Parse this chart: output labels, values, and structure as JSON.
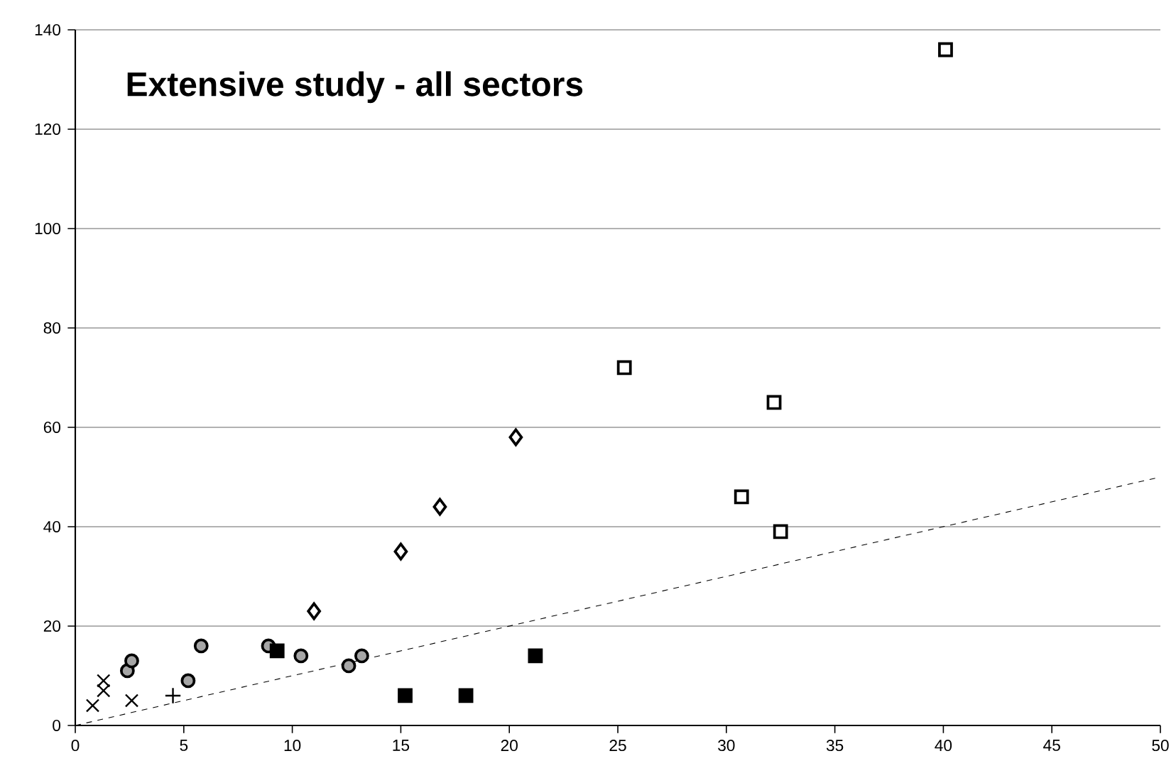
{
  "chart_data": {
    "type": "scatter",
    "title": "Extensive study - all sectors",
    "xlim": [
      0,
      50
    ],
    "ylim": [
      0,
      140
    ],
    "xticks": [
      0,
      5,
      10,
      15,
      20,
      25,
      30,
      35,
      40,
      45,
      50
    ],
    "yticks": [
      0,
      20,
      40,
      60,
      80,
      100,
      120,
      140
    ],
    "grid": "y",
    "series": [
      {
        "color": "#000000",
        "marker": "cross",
        "x": [
          0.8,
          1.3,
          1.3,
          2.6
        ],
        "values": [
          4,
          7,
          9,
          5
        ]
      },
      {
        "color": "#000000",
        "marker": "plus",
        "x": [
          4.5
        ],
        "values": [
          6
        ]
      },
      {
        "color": "#a6a6a6",
        "marker": "circle",
        "x": [
          2.4,
          2.6,
          5.2,
          5.8,
          8.9,
          10.4,
          12.6,
          13.2
        ],
        "values": [
          11,
          13,
          9,
          16,
          16,
          14,
          12,
          14
        ]
      },
      {
        "color": "#000000",
        "marker": "square",
        "x": [
          9.3,
          15.2,
          18.0,
          21.2
        ],
        "values": [
          15,
          6,
          6,
          14
        ]
      },
      {
        "color": "#ffffff",
        "marker": "diamond",
        "x": [
          11.0,
          15.0,
          16.8,
          20.3
        ],
        "values": [
          23,
          35,
          44,
          58
        ]
      },
      {
        "color": "#ffffff",
        "marker": "square",
        "x": [
          25.3,
          30.7,
          32.2,
          32.5,
          40.1
        ],
        "values": [
          72,
          46,
          65,
          39,
          136
        ]
      },
      {
        "type": "line",
        "color": "#000000",
        "marker": "none",
        "line_style": "dashed",
        "x": [
          0,
          50
        ],
        "values": [
          0,
          50
        ]
      }
    ]
  }
}
